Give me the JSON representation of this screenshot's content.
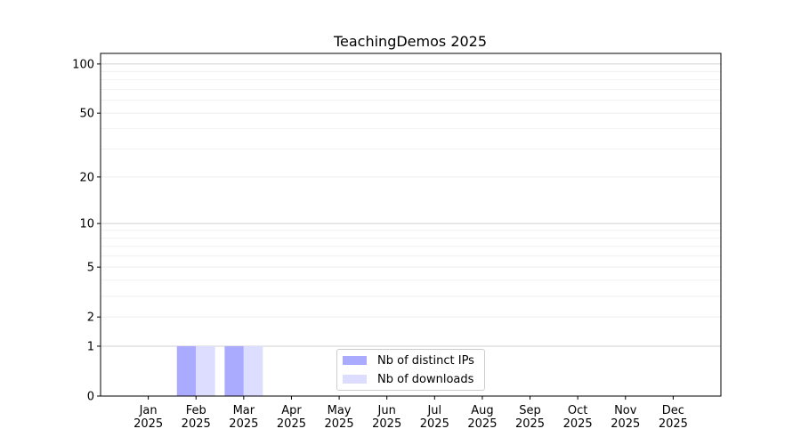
{
  "chart_data": {
    "type": "bar",
    "title": "TeachingDemos 2025",
    "xlabel": "",
    "ylabel": "",
    "categories": [
      "Jan\n2025",
      "Feb\n2025",
      "Mar\n2025",
      "Apr\n2025",
      "May\n2025",
      "Jun\n2025",
      "Jul\n2025",
      "Aug\n2025",
      "Sep\n2025",
      "Oct\n2025",
      "Nov\n2025",
      "Dec\n2025"
    ],
    "series": [
      {
        "name": "Nb of distinct IPs",
        "color": "#aaaaff",
        "values": [
          0,
          1,
          1,
          0,
          0,
          0,
          0,
          0,
          0,
          0,
          0,
          0
        ]
      },
      {
        "name": "Nb of downloads",
        "color": "#ddddff",
        "values": [
          0,
          1,
          1,
          0,
          0,
          0,
          0,
          0,
          0,
          0,
          0,
          0
        ]
      }
    ],
    "yscale": "log(1+y)",
    "ylim": [
      0,
      116
    ],
    "yticks": [
      0,
      1,
      2,
      5,
      10,
      20,
      50,
      100
    ],
    "ytick_labels": [
      "0",
      "1",
      "2",
      "5",
      "10",
      "20",
      "50",
      "100"
    ],
    "grid": true,
    "legend_position": "lower-center"
  }
}
